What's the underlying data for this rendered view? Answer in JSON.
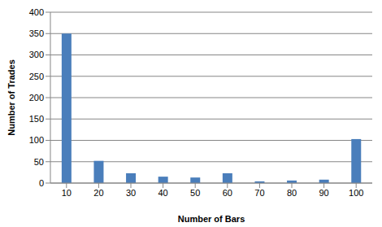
{
  "chart_data": {
    "type": "bar",
    "x_label": "Number of Bars",
    "y_label": "Number of Trades",
    "categories": [
      10,
      20,
      30,
      40,
      50,
      60,
      70,
      80,
      90,
      100
    ],
    "values": [
      350,
      52,
      23,
      15,
      13,
      23,
      4,
      6,
      8,
      103
    ],
    "color": "#4a7ebb",
    "ylim": [
      0,
      400
    ],
    "yticks": [
      0,
      50,
      100,
      150,
      200,
      250,
      300,
      350,
      400
    ],
    "grid": true
  }
}
